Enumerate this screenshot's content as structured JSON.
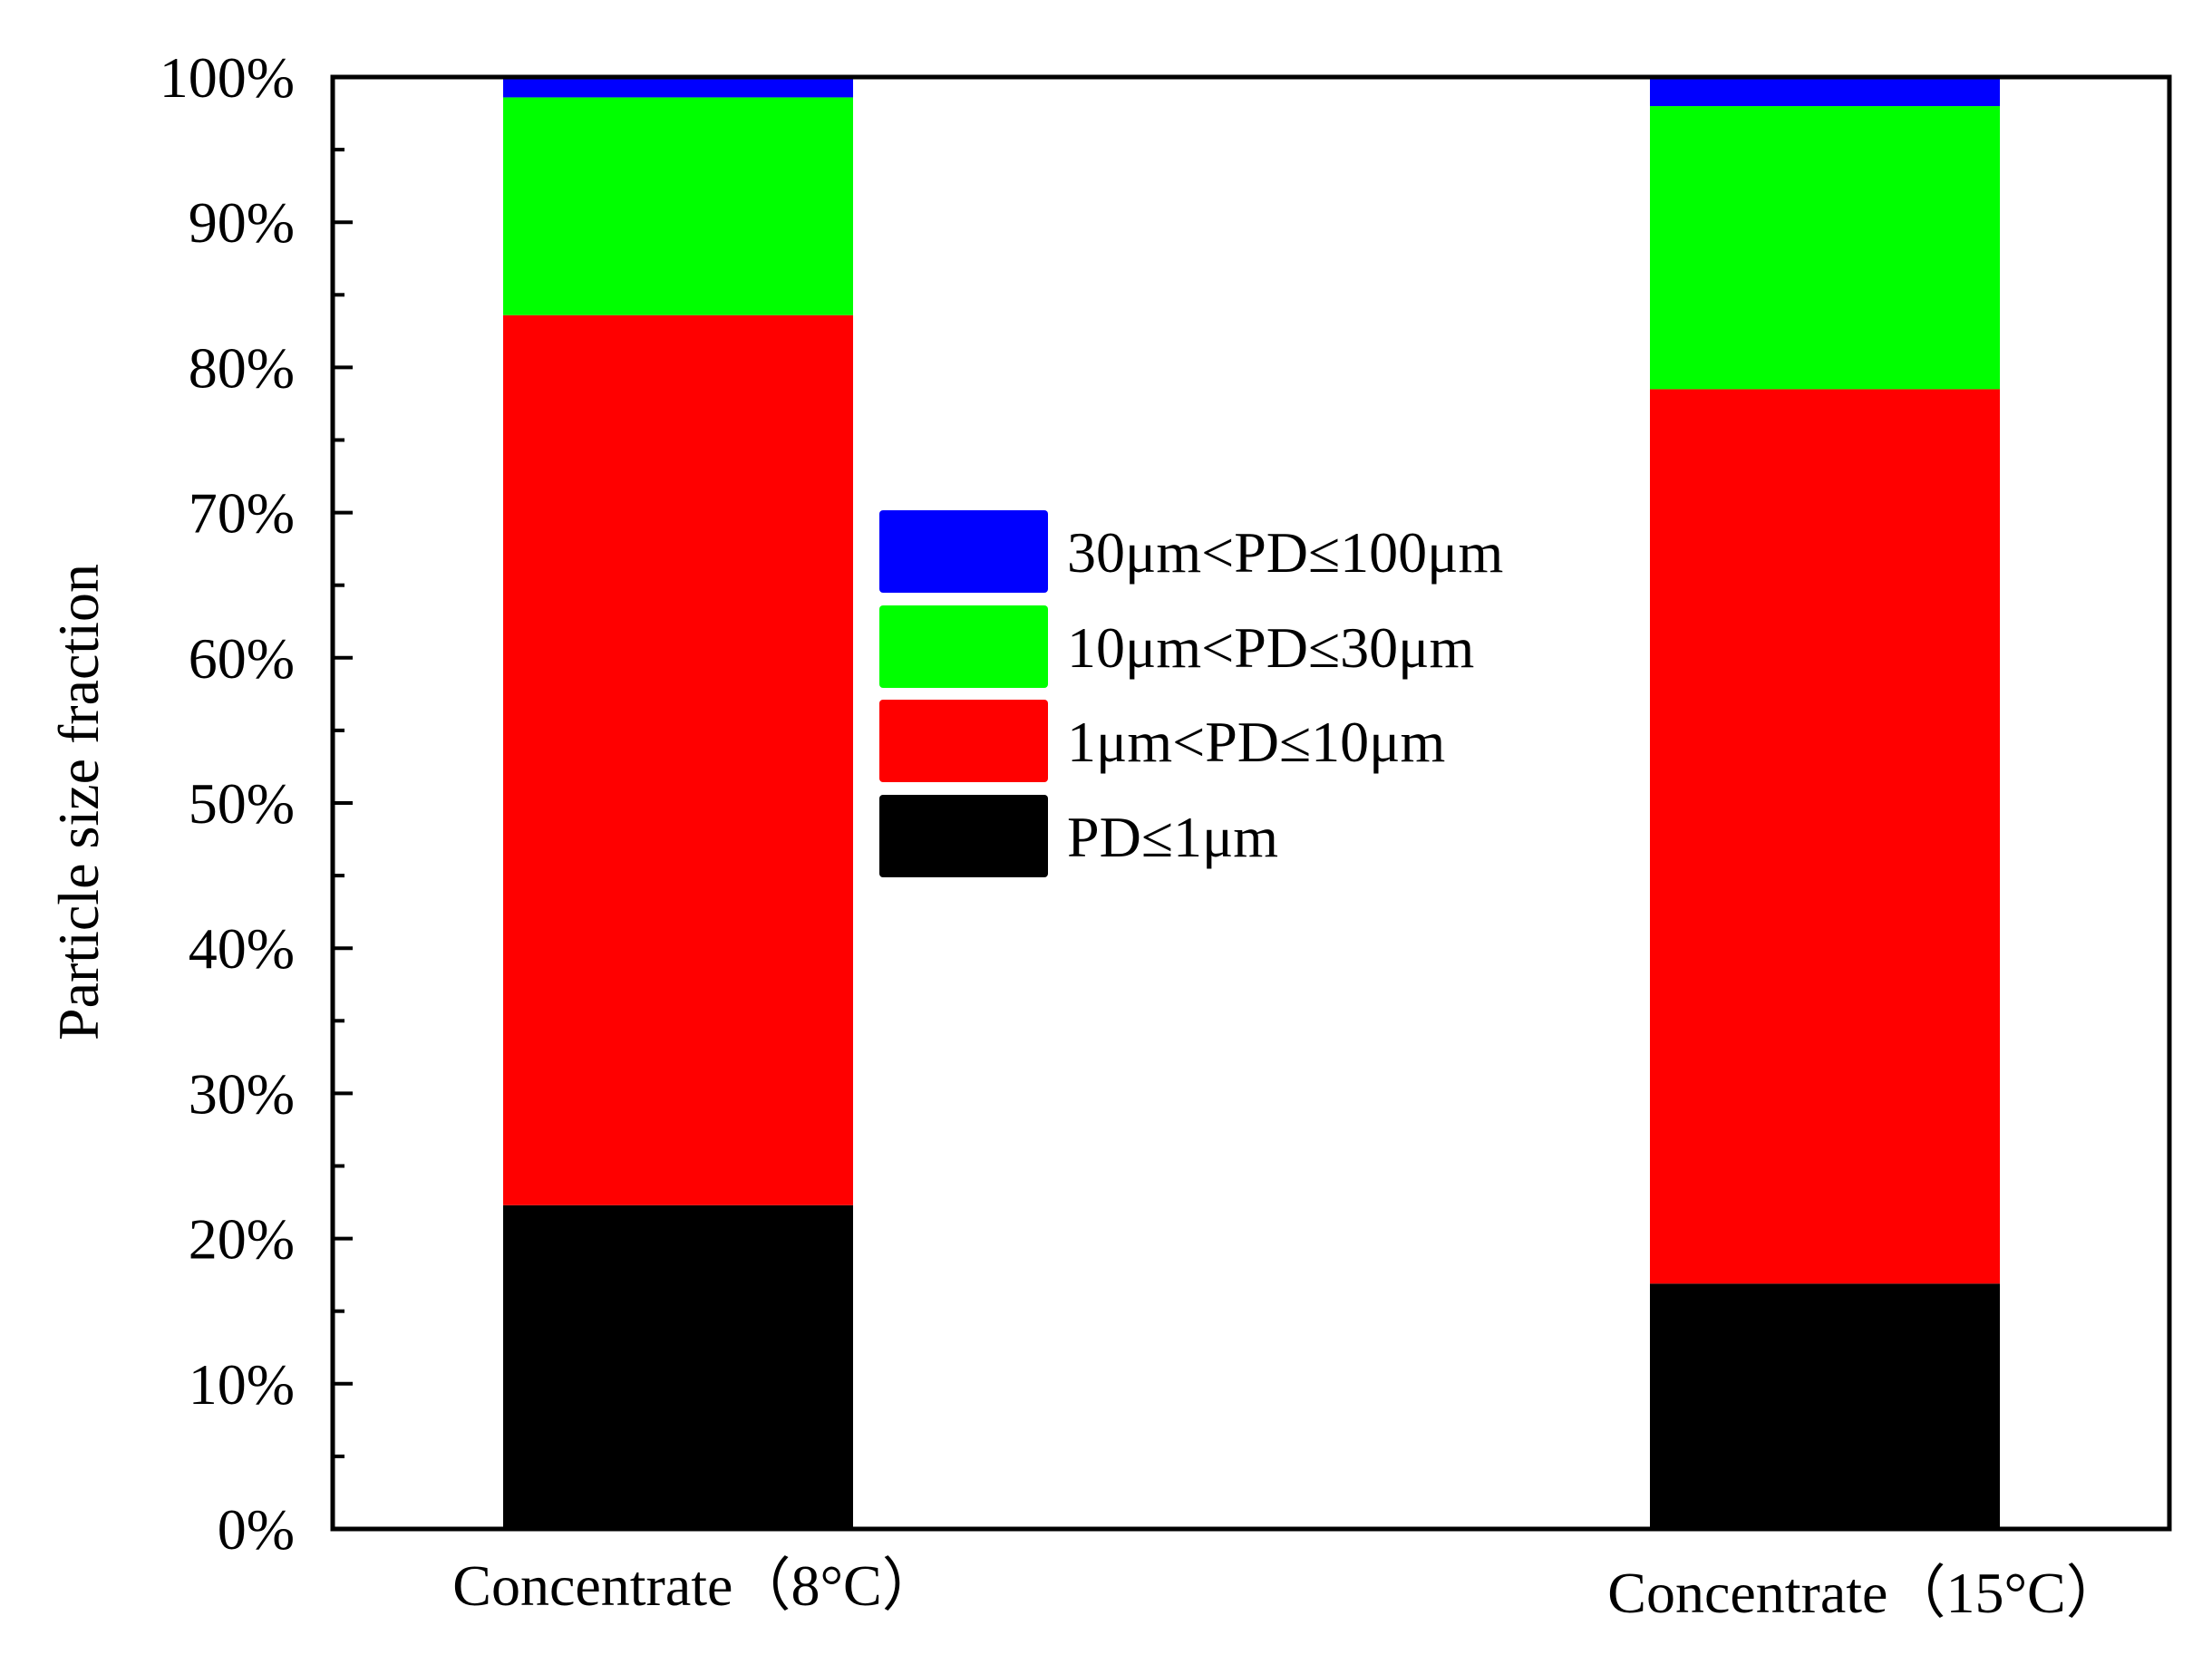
{
  "chart_data": {
    "type": "bar",
    "stacked": true,
    "title": "",
    "xlabel": "",
    "ylabel": "Particle size fraction",
    "ylim": [
      0,
      100
    ],
    "yticks": [
      {
        "value": 0,
        "label": "0%"
      },
      {
        "value": 10,
        "label": "10%"
      },
      {
        "value": 20,
        "label": "20%"
      },
      {
        "value": 30,
        "label": "30%"
      },
      {
        "value": 40,
        "label": "40%"
      },
      {
        "value": 50,
        "label": "50%"
      },
      {
        "value": 60,
        "label": "60%"
      },
      {
        "value": 70,
        "label": "70%"
      },
      {
        "value": 80,
        "label": "80%"
      },
      {
        "value": 90,
        "label": "90%"
      },
      {
        "value": 100,
        "label": "100%"
      }
    ],
    "categories": [
      "Concentrate（8°C）",
      "Concentrate（15°C）"
    ],
    "series": [
      {
        "name": "PD≤1μm",
        "color": "#000000",
        "values": [
          22.3,
          16.9
        ]
      },
      {
        "name": "1μm<PD≤10μm",
        "color": "#ff0000",
        "values": [
          61.3,
          61.6
        ]
      },
      {
        "name": "10μm<PD≤30μm",
        "color": "#00ff00",
        "values": [
          15.0,
          19.5
        ]
      },
      {
        "name": "30μm<PD≤100μm",
        "color": "#0000ff",
        "values": [
          1.4,
          2.0
        ]
      }
    ],
    "legend": {
      "placement": "center",
      "order": [
        "30μm<PD≤100μm",
        "10μm<PD≤30μm",
        "1μm<PD≤10μm",
        "PD≤1μm"
      ]
    },
    "grid": false
  }
}
